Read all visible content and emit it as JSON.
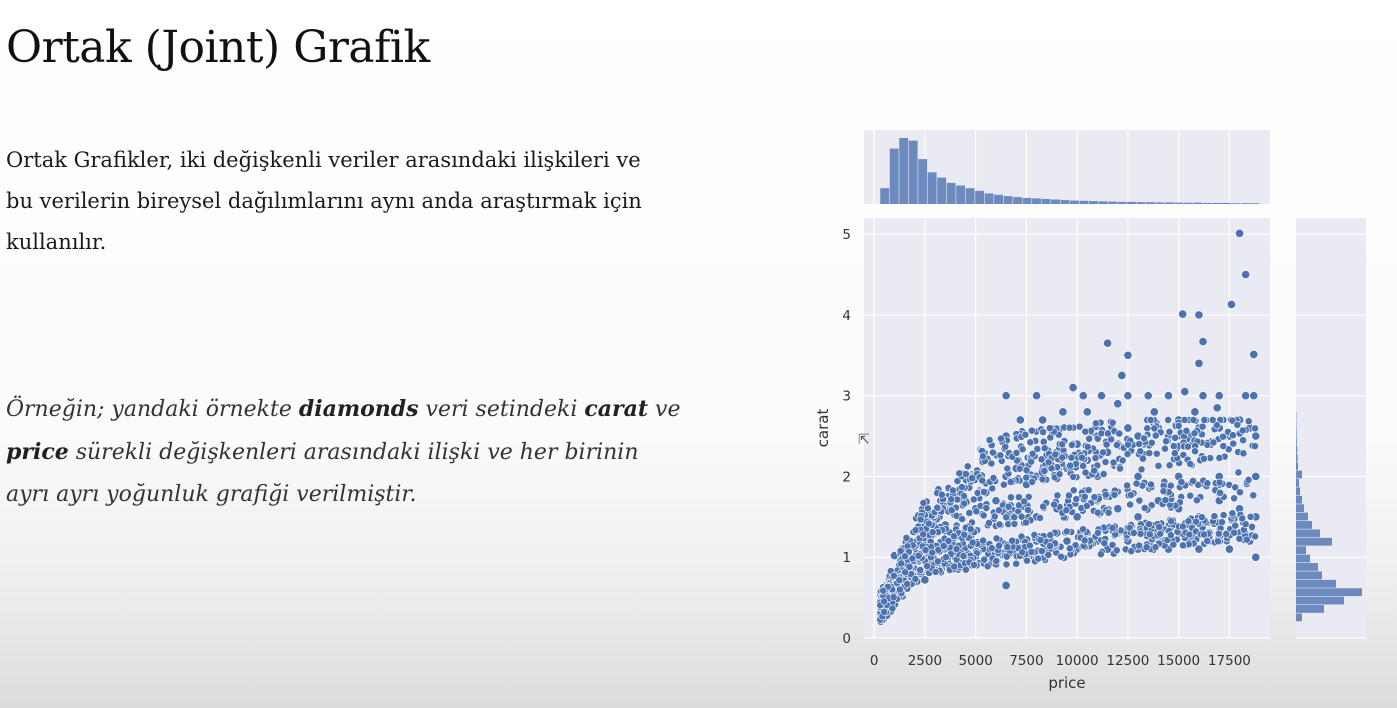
{
  "slide": {
    "title": "Ortak (Joint) Grafik",
    "intro": "Ortak Grafikler, iki değişkenli veriler arasındaki ilişkileri ve bu verilerin bireysel dağılımlarını aynı anda araştırmak için kullanılır.",
    "example": {
      "p1": "Örneğin; yandaki örnekte ",
      "b1": "diamonds",
      "p2": " veri setindeki ",
      "b2": "carat",
      "p3": " ve ",
      "b3": "price",
      "p4": " sürekli değişkenleri arasındaki ilişki ve her birinin ayrı ayrı yoğunluk grafiği verilmiştir."
    }
  },
  "chart_data": {
    "type": "scatter",
    "xlabel": "price",
    "ylabel": "carat",
    "xlim": [
      -500,
      19500
    ],
    "ylim": [
      0,
      5.2
    ],
    "xticks": [
      0,
      2500,
      5000,
      7500,
      10000,
      12500,
      15000,
      17500
    ],
    "yticks": [
      0,
      1,
      2,
      3,
      4,
      5
    ],
    "grid": true,
    "marker_color": "#4c72b0",
    "background_color": "#eaeaf2",
    "points": [
      [
        330,
        0.25
      ],
      [
        400,
        0.3
      ],
      [
        450,
        0.35
      ],
      [
        500,
        0.28
      ],
      [
        550,
        0.32
      ],
      [
        600,
        0.3
      ],
      [
        700,
        0.34
      ],
      [
        800,
        0.36
      ],
      [
        900,
        0.4
      ],
      [
        1000,
        0.45
      ],
      [
        1100,
        0.5
      ],
      [
        1200,
        0.55
      ],
      [
        1300,
        0.6
      ],
      [
        1500,
        0.62
      ],
      [
        1700,
        0.7
      ],
      [
        1900,
        0.75
      ],
      [
        2100,
        0.7
      ],
      [
        2300,
        0.8
      ],
      [
        2500,
        0.72
      ],
      [
        2700,
        0.82
      ],
      [
        3000,
        0.9
      ],
      [
        3300,
        0.85
      ],
      [
        3600,
        0.95
      ],
      [
        4000,
        1.0
      ],
      [
        4300,
        0.9
      ],
      [
        4600,
        1.05
      ],
      [
        5000,
        1.01
      ],
      [
        5400,
        1.1
      ],
      [
        5800,
        1.05
      ],
      [
        6200,
        1.2
      ],
      [
        1000,
        1.02
      ],
      [
        1500,
        1.0
      ],
      [
        2000,
        1.1
      ],
      [
        2500,
        1.2
      ],
      [
        2800,
        1.5
      ],
      [
        3000,
        1.3
      ],
      [
        3200,
        1.5
      ],
      [
        3500,
        1.4
      ],
      [
        3800,
        1.6
      ],
      [
        4200,
        1.5
      ],
      [
        4500,
        1.7
      ],
      [
        5000,
        1.6
      ],
      [
        5500,
        1.8
      ],
      [
        6000,
        1.7
      ],
      [
        6500,
        2.0
      ],
      [
        7000,
        2.1
      ],
      [
        7500,
        1.9
      ],
      [
        8000,
        2.0
      ],
      [
        8500,
        2.2
      ],
      [
        9000,
        2.3
      ],
      [
        9500,
        2.1
      ],
      [
        10000,
        2.4
      ],
      [
        10500,
        2.2
      ],
      [
        11000,
        2.5
      ],
      [
        11500,
        2.3
      ],
      [
        12000,
        2.4
      ],
      [
        12500,
        2.6
      ],
      [
        13000,
        2.5
      ],
      [
        13500,
        2.4
      ],
      [
        14000,
        2.6
      ],
      [
        14500,
        2.5
      ],
      [
        15000,
        2.7
      ],
      [
        15500,
        2.5
      ],
      [
        16000,
        2.6
      ],
      [
        16500,
        2.4
      ],
      [
        17000,
        2.6
      ],
      [
        17500,
        2.5
      ],
      [
        18000,
        2.7
      ],
      [
        18500,
        2.6
      ],
      [
        18800,
        2.5
      ],
      [
        7000,
        1.1
      ],
      [
        7500,
        1.0
      ],
      [
        8000,
        1.2
      ],
      [
        8500,
        1.1
      ],
      [
        9000,
        1.3
      ],
      [
        9500,
        1.2
      ],
      [
        10000,
        1.1
      ],
      [
        10500,
        1.3
      ],
      [
        11000,
        1.2
      ],
      [
        11500,
        1.1
      ],
      [
        12000,
        1.3
      ],
      [
        12500,
        1.2
      ],
      [
        13000,
        1.1
      ],
      [
        13500,
        1.3
      ],
      [
        14000,
        1.2
      ],
      [
        14500,
        1.1
      ],
      [
        15000,
        1.3
      ],
      [
        15500,
        1.2
      ],
      [
        16000,
        1.1
      ],
      [
        16500,
        1.3
      ],
      [
        17000,
        1.2
      ],
      [
        17500,
        1.1
      ],
      [
        18000,
        1.3
      ],
      [
        18500,
        1.2
      ],
      [
        18800,
        1.0
      ],
      [
        8000,
        1.5
      ],
      [
        9000,
        1.6
      ],
      [
        10000,
        1.5
      ],
      [
        11000,
        1.7
      ],
      [
        12000,
        1.6
      ],
      [
        13000,
        1.5
      ],
      [
        14000,
        1.7
      ],
      [
        15000,
        1.6
      ],
      [
        16000,
        1.5
      ],
      [
        17000,
        1.7
      ],
      [
        18000,
        1.6
      ],
      [
        18800,
        1.5
      ],
      [
        9000,
        2.0
      ],
      [
        11000,
        2.0
      ],
      [
        13000,
        2.0
      ],
      [
        15000,
        2.0
      ],
      [
        17000,
        2.0
      ],
      [
        18800,
        2.0
      ],
      [
        6500,
        3.0
      ],
      [
        8000,
        3.0
      ],
      [
        9800,
        3.1
      ],
      [
        10300,
        3.0
      ],
      [
        11200,
        3.0
      ],
      [
        12500,
        3.0
      ],
      [
        13500,
        3.0
      ],
      [
        14500,
        3.0
      ],
      [
        15300,
        3.05
      ],
      [
        16200,
        3.0
      ],
      [
        17000,
        3.0
      ],
      [
        18300,
        3.0
      ],
      [
        18700,
        3.0
      ],
      [
        11500,
        3.65
      ],
      [
        12500,
        3.5
      ],
      [
        12200,
        3.25
      ],
      [
        15200,
        4.01
      ],
      [
        16000,
        4.0
      ],
      [
        16200,
        3.67
      ],
      [
        17600,
        4.13
      ],
      [
        18700,
        3.51
      ],
      [
        18300,
        4.5
      ],
      [
        18000,
        5.01
      ],
      [
        6500,
        2.5
      ],
      [
        7200,
        2.7
      ],
      [
        8300,
        2.7
      ],
      [
        9300,
        2.8
      ],
      [
        10500,
        2.8
      ],
      [
        12000,
        2.9
      ],
      [
        13800,
        2.8
      ],
      [
        15800,
        2.8
      ],
      [
        16900,
        2.85
      ],
      [
        16000,
        3.4
      ],
      [
        6500,
        0.65
      ],
      [
        5000,
        0.9
      ],
      [
        6000,
        0.95
      ]
    ],
    "marginal_x": {
      "type": "histogram",
      "values": [
        6,
        21,
        25,
        24,
        17,
        12,
        10,
        8,
        7,
        6,
        5,
        4,
        3.5,
        3,
        2.6,
        2.3,
        2.1,
        1.9,
        1.7,
        1.5,
        1.3,
        1.2,
        1.1,
        1,
        0.9,
        0.8,
        0.8,
        0.7,
        0.7,
        0.6,
        0.6,
        0.5,
        0.5,
        0.5,
        0.4,
        0.4,
        0.4,
        0.3,
        0.3,
        0.3
      ]
    },
    "marginal_y": {
      "type": "histogram",
      "values": [
        3,
        14,
        24,
        33,
        20,
        13,
        11,
        7,
        5,
        18,
        12,
        8,
        6,
        4,
        3,
        2,
        1.5,
        3,
        1,
        0.8,
        0.6,
        0.4,
        0.3,
        0.2,
        0.2
      ]
    }
  }
}
